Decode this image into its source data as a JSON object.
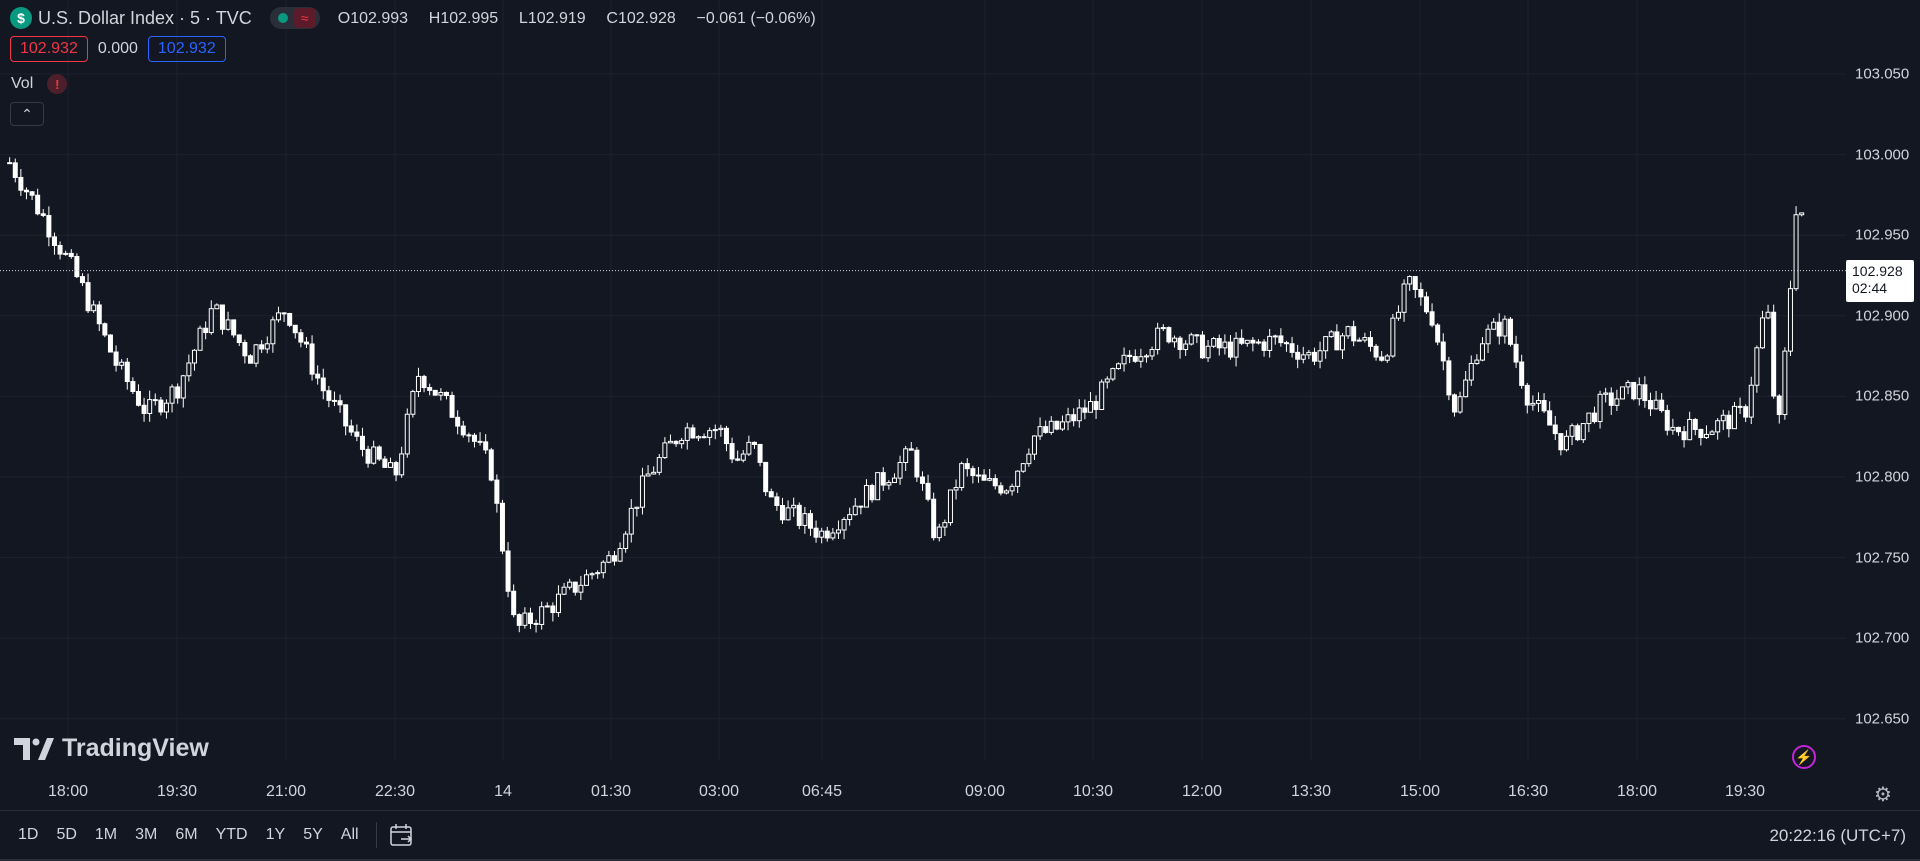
{
  "header": {
    "badge_symbol": "$",
    "title": "U.S. Dollar Index · 5 · TVC",
    "status_icon": "green-dot-icon",
    "wave_icon": "wave-icon",
    "wave_glyph": "≈",
    "ohlc": [
      {
        "label": "O",
        "value": "102.993"
      },
      {
        "label": "H",
        "value": "102.995"
      },
      {
        "label": "L",
        "value": "102.919"
      },
      {
        "label": "C",
        "value": "102.928"
      }
    ],
    "change": "−0.061 (−0.06%)"
  },
  "quote": {
    "bid": "102.932",
    "spread": "0.000",
    "ask": "102.932"
  },
  "indicator": {
    "name": "Vol",
    "warning_glyph": "!",
    "collapse_glyph": "⌃"
  },
  "logo": {
    "text": "TradingView"
  },
  "price_axis": {
    "labels": [
      "103.050",
      "103.000",
      "102.950",
      "102.900",
      "102.850",
      "102.800",
      "102.750",
      "102.700",
      "102.650"
    ],
    "last_price": "102.928",
    "countdown": "02:44"
  },
  "time_axis": {
    "labels": [
      "18:00",
      "19:30",
      "21:00",
      "22:30",
      "14",
      "01:30",
      "03:00",
      "06:45",
      "09:00",
      "10:30",
      "12:00",
      "13:30",
      "15:00",
      "16:30",
      "18:00",
      "19:30"
    ]
  },
  "toolbar": {
    "ranges": [
      "1D",
      "5D",
      "1M",
      "3M",
      "6M",
      "YTD",
      "1Y",
      "5Y",
      "All"
    ],
    "clock": "20:22:16 (UTC+7)"
  },
  "colors": {
    "background": "#131722",
    "candle": "#ffffff",
    "grid": "#1e222d",
    "bid": "#f23645",
    "ask": "#2962ff"
  },
  "chart_data": {
    "type": "candlestick",
    "title": "U.S. Dollar Index · 5 · TVC",
    "ylim": [
      102.63,
      103.08
    ],
    "grid": true,
    "x_ticks": [
      "18:00",
      "19:30",
      "21:00",
      "22:30",
      "14",
      "01:30",
      "03:00",
      "06:45",
      "09:00",
      "10:30",
      "12:00",
      "13:30",
      "15:00",
      "16:30",
      "18:00",
      "19:30"
    ],
    "close_path": [
      {
        "t": "17:10",
        "v": 102.995
      },
      {
        "t": "17:40",
        "v": 102.96
      },
      {
        "t": "18:10",
        "v": 102.92
      },
      {
        "t": "18:40",
        "v": 102.87
      },
      {
        "t": "19:05",
        "v": 102.84
      },
      {
        "t": "19:30",
        "v": 102.855
      },
      {
        "t": "20:00",
        "v": 102.905
      },
      {
        "t": "20:30",
        "v": 102.875
      },
      {
        "t": "21:00",
        "v": 102.905
      },
      {
        "t": "21:30",
        "v": 102.855
      },
      {
        "t": "22:00",
        "v": 102.82
      },
      {
        "t": "22:30",
        "v": 102.8
      },
      {
        "t": "22:50",
        "v": 102.865
      },
      {
        "t": "23:30",
        "v": 102.83
      },
      {
        "t": "23:50",
        "v": 102.805
      },
      {
        "t": "00:10",
        "v": 102.705
      },
      {
        "t": "00:40",
        "v": 102.72
      },
      {
        "t": "01:30",
        "v": 102.75
      },
      {
        "t": "02:00",
        "v": 102.8
      },
      {
        "t": "02:30",
        "v": 102.83
      },
      {
        "t": "03:00",
        "v": 102.83
      },
      {
        "t": "03:30",
        "v": 102.81
      },
      {
        "t": "04:00",
        "v": 102.82
      },
      {
        "t": "04:30",
        "v": 102.785
      },
      {
        "t": "06:45",
        "v": 102.765
      },
      {
        "t": "07:30",
        "v": 102.795
      },
      {
        "t": "08:00",
        "v": 102.815
      },
      {
        "t": "08:20",
        "v": 102.76
      },
      {
        "t": "08:40",
        "v": 102.805
      },
      {
        "t": "09:00",
        "v": 102.795
      },
      {
        "t": "09:20",
        "v": 102.795
      },
      {
        "t": "09:40",
        "v": 102.825
      },
      {
        "t": "10:00",
        "v": 102.83
      },
      {
        "t": "10:30",
        "v": 102.845
      },
      {
        "t": "11:00",
        "v": 102.875
      },
      {
        "t": "11:30",
        "v": 102.89
      },
      {
        "t": "12:00",
        "v": 102.88
      },
      {
        "t": "12:30",
        "v": 102.88
      },
      {
        "t": "13:00",
        "v": 102.885
      },
      {
        "t": "13:30",
        "v": 102.875
      },
      {
        "t": "14:00",
        "v": 102.89
      },
      {
        "t": "14:30",
        "v": 102.875
      },
      {
        "t": "14:50",
        "v": 102.92
      },
      {
        "t": "15:10",
        "v": 102.9
      },
      {
        "t": "15:30",
        "v": 102.84
      },
      {
        "t": "15:50",
        "v": 102.885
      },
      {
        "t": "16:10",
        "v": 102.895
      },
      {
        "t": "16:30",
        "v": 102.85
      },
      {
        "t": "17:00",
        "v": 102.82
      },
      {
        "t": "17:30",
        "v": 102.845
      },
      {
        "t": "18:00",
        "v": 102.855
      },
      {
        "t": "18:30",
        "v": 102.83
      },
      {
        "t": "19:00",
        "v": 102.83
      },
      {
        "t": "19:30",
        "v": 102.84
      },
      {
        "t": "19:50",
        "v": 102.91
      },
      {
        "t": "20:00",
        "v": 102.82
      },
      {
        "t": "20:10",
        "v": 102.9
      },
      {
        "t": "20:20",
        "v": 102.995
      },
      {
        "t": "20:25",
        "v": 102.928
      }
    ],
    "last": {
      "open": 102.993,
      "high": 102.995,
      "low": 102.919,
      "close": 102.928
    }
  }
}
